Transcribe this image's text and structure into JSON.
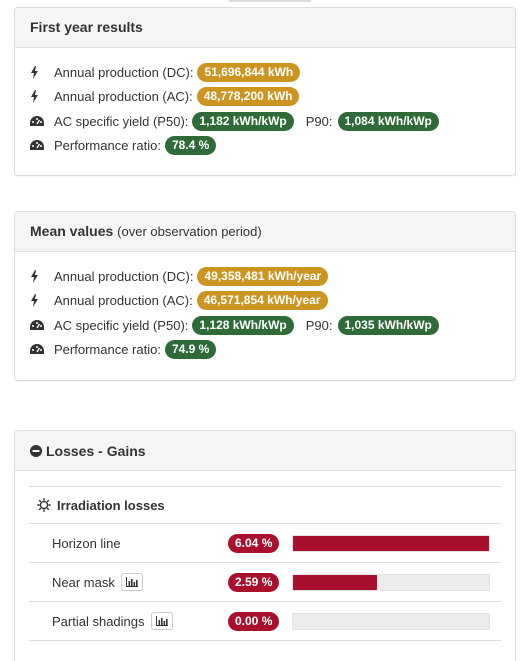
{
  "first_year": {
    "title": "First year results",
    "annual_dc_label": "Annual production (DC):",
    "annual_dc_value": "51,696,844 kWh",
    "annual_ac_label": "Annual production (AC):",
    "annual_ac_value": "48,778,200 kWh",
    "yield_label": "AC specific yield (P50):",
    "yield_value": "1,182 kWh/kWp",
    "p90_label": "P90:",
    "p90_value": "1,084 kWh/kWp",
    "pr_label": "Performance ratio:",
    "pr_value": "78.4 %"
  },
  "mean_values": {
    "title": "Mean values",
    "subtitle": "(over observation period)",
    "annual_dc_label": "Annual production (DC):",
    "annual_dc_value": "49,358,481 kWh/year",
    "annual_ac_label": "Annual production (AC):",
    "annual_ac_value": "46,571,854 kWh/year",
    "yield_label": "AC specific yield (P50):",
    "yield_value": "1,128 kWh/kWp",
    "p90_label": "P90:",
    "p90_value": "1,035 kWh/kWp",
    "pr_label": "Performance ratio:",
    "pr_value": "74.9 %"
  },
  "losses": {
    "title": "Losses - Gains",
    "irradiation_title": "Irradiation losses",
    "rows": [
      {
        "name": "Horizon line",
        "value": "6.04 %",
        "fraction": 1.0,
        "has_chart_button": false
      },
      {
        "name": "Near mask",
        "value": "2.59 %",
        "fraction": 0.43,
        "has_chart_button": true
      },
      {
        "name": "Partial shadings",
        "value": "0.00 %",
        "fraction": 0.0,
        "has_chart_button": true
      }
    ]
  },
  "colors": {
    "production_badge": "#cc9420",
    "yield_badge": "#2e6b38",
    "loss_badge": "#a8102e"
  },
  "icons": {
    "production": "bolt-icon",
    "yield": "dashboard-icon",
    "losses_toggle": "minus-circle-icon",
    "irradiation": "sun-icon",
    "chart_button": "bar-chart-icon"
  }
}
